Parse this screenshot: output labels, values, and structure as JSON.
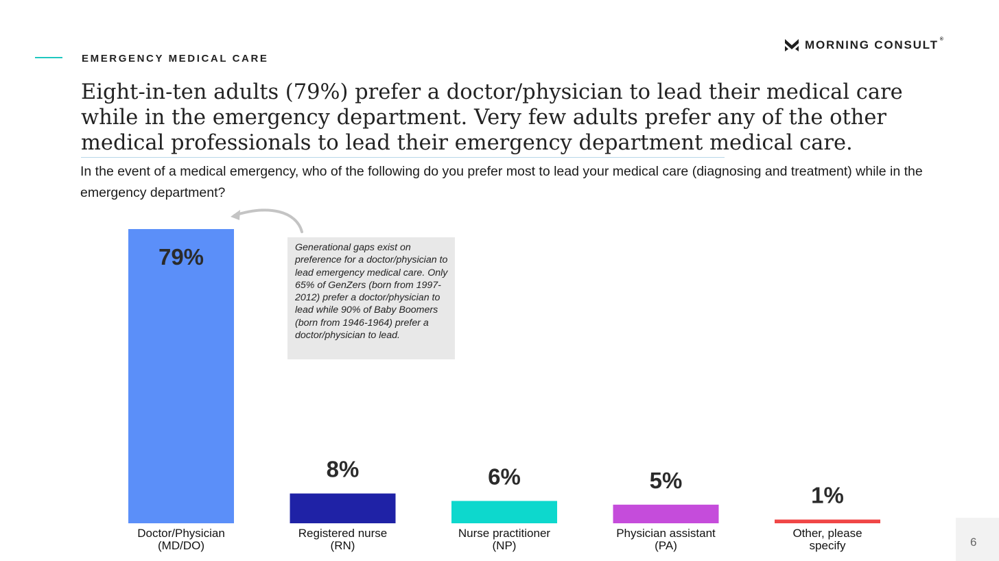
{
  "header": {
    "section_label": "EMERGENCY MEDICAL CARE",
    "logo_text": "MORNING CONSULT",
    "logo_mark": "®"
  },
  "headline": "Eight-in-ten adults (79%) prefer a doctor/physician to lead their medical care while in the emergency department. Very few adults prefer any of the other medical professionals to lead their emergency department medical care.",
  "question": "In the event of a medical emergency, who of the following do you prefer most to lead your medical care (diagnosing and treatment) while in the emergency department?",
  "callout": {
    "icon": "curved-arrow-icon",
    "text": "Generational gaps exist on preference for a doctor/physician to lead emergency medical care. Only 65% of GenZers (born from 1997-2012) prefer a doctor/physician to lead while 90% of Baby Boomers (born from 1946-1964) prefer a doctor/physician to lead."
  },
  "page_number": "6",
  "chart_data": {
    "type": "bar",
    "categories": [
      [
        "Doctor/Physician",
        "(MD/DO)"
      ],
      [
        "Registered nurse",
        "(RN)"
      ],
      [
        "Nurse practitioner",
        "(NP)"
      ],
      [
        "Physician assistant",
        "(PA)"
      ],
      [
        "Other, please",
        "specify"
      ]
    ],
    "values": [
      79,
      8,
      6,
      5,
      1
    ],
    "data_labels": [
      "79%",
      "8%",
      "6%",
      "5%",
      "1%"
    ],
    "colors": [
      "#5b8ff9",
      "#1f22a6",
      "#0dd8cd",
      "#c54cdb",
      "#f04646"
    ],
    "ylim": [
      0,
      79
    ],
    "grid": false,
    "legend": "none"
  }
}
